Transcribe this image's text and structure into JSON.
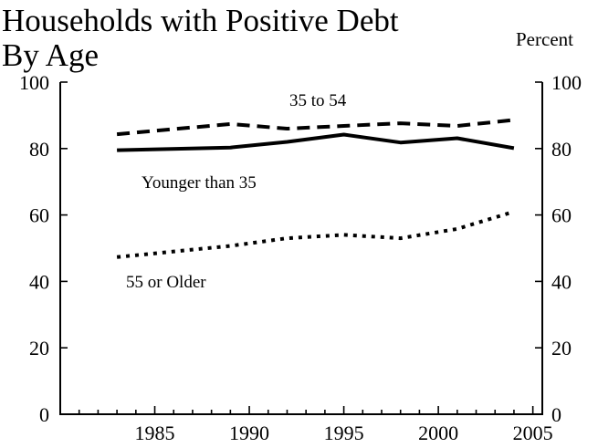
{
  "chart_data": {
    "type": "line",
    "title": "Households with Positive Debt",
    "subtitle": "By Age",
    "unit_label": "Percent",
    "ylim": [
      0,
      100
    ],
    "yticks": [
      0,
      20,
      40,
      60,
      80,
      100
    ],
    "xlim": [
      1980,
      2005.5
    ],
    "xticks": [
      1985,
      1990,
      1995,
      2000,
      2005
    ],
    "x": [
      1983,
      1989,
      1992,
      1995,
      1998,
      2001,
      2004
    ],
    "series": [
      {
        "name": "35 to 54",
        "style": "dashed",
        "values": [
          84.3,
          87.4,
          86.0,
          86.8,
          87.6,
          86.8,
          88.6
        ]
      },
      {
        "name": "Younger than 35",
        "style": "solid",
        "values": [
          79.5,
          80.3,
          82.0,
          84.2,
          81.8,
          83.1,
          80.1
        ]
      },
      {
        "name": "55 or Older",
        "style": "dotted",
        "values": [
          47.3,
          50.7,
          53.0,
          54.0,
          53.0,
          55.8,
          61.0
        ]
      }
    ],
    "grid": false,
    "legend": "inline labels",
    "colors": {
      "line": "#000000"
    }
  }
}
